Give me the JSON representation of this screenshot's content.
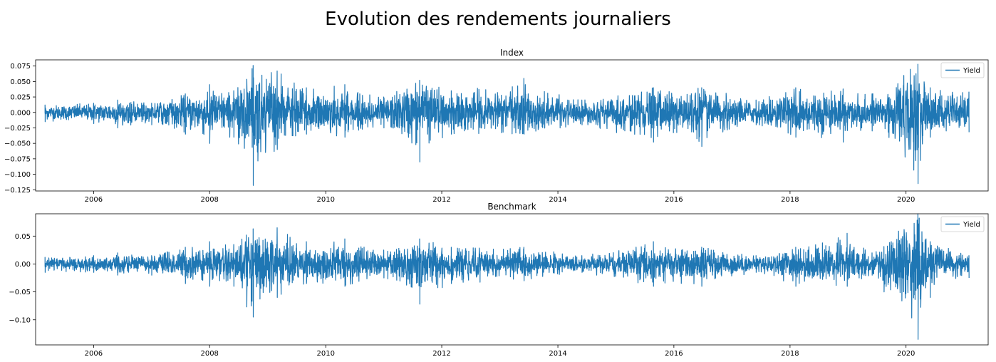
{
  "title": "Evolution des rendements journaliers",
  "series_color": "#1f77b4",
  "chart_data": [
    {
      "type": "line",
      "title": "Index",
      "legend": {
        "placement": "top-right",
        "entries": [
          "Yield"
        ]
      },
      "xlim": [
        "2005-01-01",
        "2021-06-01"
      ],
      "ylim": [
        -0.127,
        0.085
      ],
      "xticks": [
        "2006",
        "2008",
        "2010",
        "2012",
        "2014",
        "2016",
        "2018",
        "2020"
      ],
      "yticks": [
        0.075,
        0.05,
        0.025,
        0.0,
        -0.025,
        -0.05,
        -0.075,
        -0.1,
        -0.125
      ],
      "ytick_labels": [
        "0.075",
        "0.050",
        "0.025",
        "0.000",
        "−0.025",
        "−0.050",
        "−0.075",
        "−0.100",
        "−0.125"
      ],
      "grid": false,
      "series": [
        {
          "name": "Yield",
          "x_start": "2005-03-01",
          "x_end": "2021-01-31",
          "envelope": [
            {
              "date": "2005-03-01",
              "max": 0.012,
              "min": -0.015
            },
            {
              "date": "2006-01-01",
              "max": 0.015,
              "min": -0.018
            },
            {
              "date": "2006-06-01",
              "max": 0.02,
              "min": -0.025
            },
            {
              "date": "2007-01-01",
              "max": 0.015,
              "min": -0.02
            },
            {
              "date": "2007-08-01",
              "max": 0.03,
              "min": -0.035
            },
            {
              "date": "2008-01-01",
              "max": 0.045,
              "min": -0.05
            },
            {
              "date": "2008-06-01",
              "max": 0.035,
              "min": -0.04
            },
            {
              "date": "2008-10-01",
              "max": 0.076,
              "min": -0.118
            },
            {
              "date": "2009-03-01",
              "max": 0.067,
              "min": -0.06
            },
            {
              "date": "2009-09-01",
              "max": 0.04,
              "min": -0.035
            },
            {
              "date": "2010-05-01",
              "max": 0.045,
              "min": -0.04
            },
            {
              "date": "2011-01-01",
              "max": 0.025,
              "min": -0.025
            },
            {
              "date": "2011-08-15",
              "max": 0.052,
              "min": -0.08
            },
            {
              "date": "2012-03-01",
              "max": 0.035,
              "min": -0.035
            },
            {
              "date": "2013-06-01",
              "max": 0.055,
              "min": -0.035
            },
            {
              "date": "2014-06-01",
              "max": 0.02,
              "min": -0.02
            },
            {
              "date": "2015-08-25",
              "max": 0.04,
              "min": -0.048
            },
            {
              "date": "2016-06-24",
              "max": 0.04,
              "min": -0.055
            },
            {
              "date": "2017-06-01",
              "max": 0.02,
              "min": -0.02
            },
            {
              "date": "2018-02-06",
              "max": 0.04,
              "min": -0.04
            },
            {
              "date": "2018-12-01",
              "max": 0.038,
              "min": -0.048
            },
            {
              "date": "2019-06-01",
              "max": 0.03,
              "min": -0.03
            },
            {
              "date": "2020-03-16",
              "max": 0.078,
              "min": -0.115
            },
            {
              "date": "2020-06-01",
              "max": 0.04,
              "min": -0.04
            },
            {
              "date": "2021-01-31",
              "max": 0.033,
              "min": -0.032
            }
          ]
        }
      ]
    },
    {
      "type": "line",
      "title": "Benchmark",
      "legend": {
        "placement": "top-right",
        "entries": [
          "Yield"
        ]
      },
      "xlim": [
        "2005-01-01",
        "2021-06-01"
      ],
      "ylim": [
        -0.145,
        0.09
      ],
      "xticks": [
        "2006",
        "2008",
        "2010",
        "2012",
        "2014",
        "2016",
        "2018",
        "2020"
      ],
      "yticks": [
        0.05,
        0.0,
        -0.05,
        -0.1
      ],
      "ytick_labels": [
        "0.05",
        "0.00",
        "−0.05",
        "−0.10"
      ],
      "grid": false,
      "series": [
        {
          "name": "Yield",
          "x_start": "2005-03-01",
          "x_end": "2021-01-31",
          "envelope": [
            {
              "date": "2005-03-01",
              "max": 0.012,
              "min": -0.015
            },
            {
              "date": "2006-01-01",
              "max": 0.015,
              "min": -0.015
            },
            {
              "date": "2006-06-01",
              "max": 0.02,
              "min": -0.02
            },
            {
              "date": "2007-01-01",
              "max": 0.015,
              "min": -0.02
            },
            {
              "date": "2007-08-01",
              "max": 0.03,
              "min": -0.035
            },
            {
              "date": "2008-01-01",
              "max": 0.04,
              "min": -0.04
            },
            {
              "date": "2008-06-01",
              "max": 0.035,
              "min": -0.04
            },
            {
              "date": "2008-10-01",
              "max": 0.063,
              "min": -0.095
            },
            {
              "date": "2009-03-01",
              "max": 0.065,
              "min": -0.06
            },
            {
              "date": "2009-09-01",
              "max": 0.04,
              "min": -0.035
            },
            {
              "date": "2010-05-01",
              "max": 0.045,
              "min": -0.04
            },
            {
              "date": "2011-01-01",
              "max": 0.025,
              "min": -0.025
            },
            {
              "date": "2011-08-15",
              "max": 0.045,
              "min": -0.072
            },
            {
              "date": "2012-03-01",
              "max": 0.03,
              "min": -0.035
            },
            {
              "date": "2013-06-01",
              "max": 0.03,
              "min": -0.03
            },
            {
              "date": "2014-06-01",
              "max": 0.015,
              "min": -0.015
            },
            {
              "date": "2015-08-25",
              "max": 0.04,
              "min": -0.04
            },
            {
              "date": "2016-06-24",
              "max": 0.03,
              "min": -0.04
            },
            {
              "date": "2017-06-01",
              "max": 0.015,
              "min": -0.015
            },
            {
              "date": "2018-02-06",
              "max": 0.03,
              "min": -0.04
            },
            {
              "date": "2018-12-26",
              "max": 0.055,
              "min": -0.04
            },
            {
              "date": "2019-06-01",
              "max": 0.02,
              "min": -0.02
            },
            {
              "date": "2020-03-16",
              "max": 0.09,
              "min": -0.135
            },
            {
              "date": "2020-06-01",
              "max": 0.04,
              "min": -0.06
            },
            {
              "date": "2021-01-31",
              "max": 0.015,
              "min": -0.025
            }
          ]
        }
      ]
    }
  ]
}
